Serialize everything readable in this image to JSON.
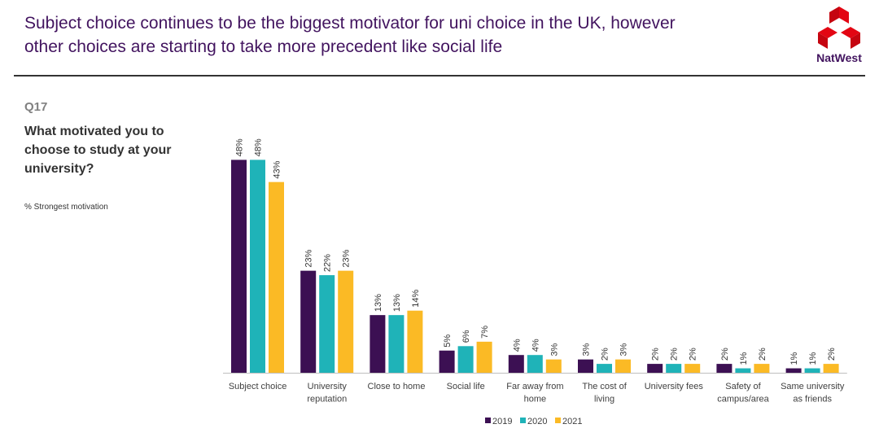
{
  "header": {
    "title_lines": [
      "Subject choice continues to be the biggest motivator for uni choice in the UK, however",
      "other choices are starting to take more precedent like social life"
    ],
    "logo_text": "NatWest"
  },
  "question": {
    "number": "Q17",
    "lines": [
      "What motivated you to",
      "choose to study at your",
      "university?"
    ],
    "note": "% Strongest motivation"
  },
  "chart_data": {
    "type": "bar",
    "categories": [
      [
        "Subject choice"
      ],
      [
        "University",
        "reputation"
      ],
      [
        "Close to home"
      ],
      [
        "Social life"
      ],
      [
        "Far away from",
        "home"
      ],
      [
        "The cost of",
        "living"
      ],
      [
        "University fees"
      ],
      [
        "Safety of",
        "campus/area"
      ],
      [
        "Same university",
        "as friends"
      ]
    ],
    "series": [
      {
        "name": "2019",
        "color": "#3c1053",
        "values": [
          48,
          23,
          13,
          5,
          4,
          3,
          2,
          2,
          1
        ]
      },
      {
        "name": "2020",
        "color": "#1fb3b8",
        "values": [
          48,
          22,
          13,
          6,
          4,
          2,
          2,
          1,
          1
        ]
      },
      {
        "name": "2021",
        "color": "#fbba25",
        "values": [
          43,
          23,
          14,
          7,
          3,
          3,
          2,
          2,
          2
        ]
      }
    ],
    "value_suffix": "%",
    "ylim": [
      0,
      50
    ],
    "grid": false,
    "legend": "bottom"
  },
  "colors": {
    "brand": "#42145f",
    "logo_red": "#e30613"
  }
}
